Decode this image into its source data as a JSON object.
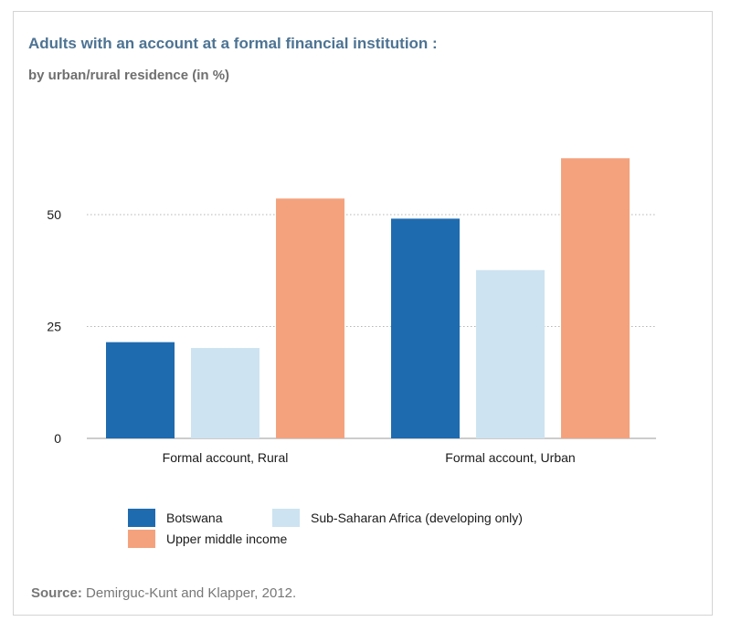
{
  "chart_data": {
    "type": "bar",
    "title": "Adults with an account at a formal financial institution :",
    "subtitle": "by urban/rural residence (in %)",
    "categories": [
      "Formal account, Rural",
      "Formal account, Urban"
    ],
    "series": [
      {
        "name": "Botswana",
        "color": "#1f6bb0",
        "values": [
          21.5,
          49.1
        ]
      },
      {
        "name": "Sub-Saharan Africa (developing only)",
        "color": "#cde3f1",
        "values": [
          20.2,
          37.6
        ]
      },
      {
        "name": "Upper middle income",
        "color": "#f4a27e",
        "values": [
          53.6,
          62.6
        ]
      }
    ],
    "yticks": [
      0,
      25,
      50
    ],
    "ylim": [
      0,
      70
    ],
    "grid": true,
    "legend_position": "bottom-left"
  },
  "source": {
    "label": "Source:",
    "text": "Demirguc-Kunt and Klapper, 2012."
  }
}
